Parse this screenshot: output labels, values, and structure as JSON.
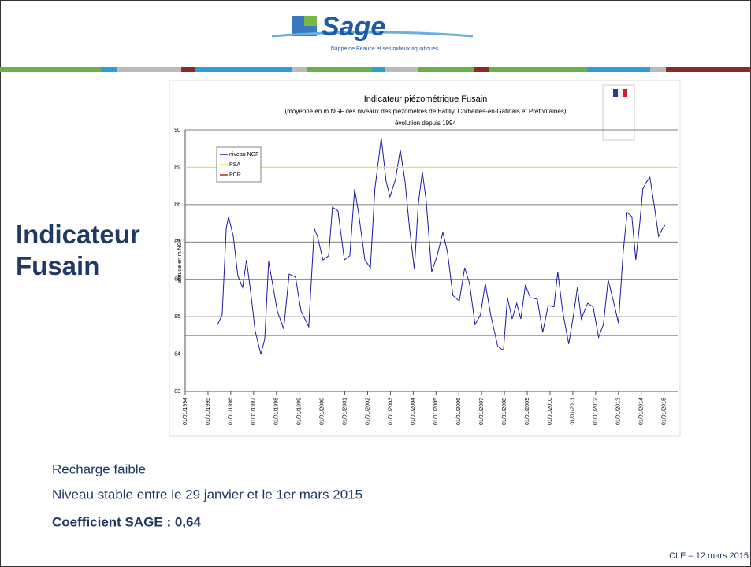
{
  "header": {
    "logo": "Sage",
    "tagline": "Nappe de Beauce et ses milieux aquatiques"
  },
  "slide_title": "Indicateur Fusain",
  "notes": [
    "Recharge faible",
    "Niveau stable entre le 29 janvier et le 1er mars 2015"
  ],
  "coefficient": "Coefficient SAGE : 0,64",
  "footer": "CLE – 12 mars 2015",
  "chart_data": {
    "type": "line",
    "title": "Indicateur piézométrique Fusain",
    "subtitle": "(moyenne en m NGF des niveaux des piézomètres de Batilly, Corbeilles-en-Gâtinais et Préfontaines)",
    "subtitle2": "évolution depuis 1994",
    "ylabel": "altitude en m NGF",
    "xlim": [
      1994,
      2015.6
    ],
    "ylim": [
      83,
      90
    ],
    "yticks": [
      83,
      84,
      85,
      86,
      87,
      88,
      89,
      90
    ],
    "xticks": [
      {
        "value": 1994,
        "label": "01/01/1994"
      },
      {
        "value": 1995,
        "label": "01/01/1995"
      },
      {
        "value": 1996,
        "label": "01/01/1996"
      },
      {
        "value": 1997,
        "label": "01/01/1997"
      },
      {
        "value": 1998,
        "label": "01/01/1998"
      },
      {
        "value": 1999,
        "label": "01/01/1999"
      },
      {
        "value": 2000,
        "label": "01/01/2000"
      },
      {
        "value": 2001,
        "label": "01/01/2001"
      },
      {
        "value": 2002,
        "label": "01/01/2002"
      },
      {
        "value": 2003,
        "label": "01/01/2003"
      },
      {
        "value": 2004,
        "label": "01/01/2004"
      },
      {
        "value": 2005,
        "label": "01/01/2005"
      },
      {
        "value": 2006,
        "label": "01/01/2006"
      },
      {
        "value": 2007,
        "label": "01/01/2007"
      },
      {
        "value": 2008,
        "label": "01/01/2008"
      },
      {
        "value": 2009,
        "label": "01/01/2009"
      },
      {
        "value": 2010,
        "label": "01/01/2010"
      },
      {
        "value": 2011,
        "label": "01/01/2011"
      },
      {
        "value": 2012,
        "label": "01/01/2012"
      },
      {
        "value": 2013,
        "label": "01/01/2013"
      },
      {
        "value": 2014,
        "label": "01/01/2014"
      },
      {
        "value": 2015,
        "label": "01/01/2015"
      }
    ],
    "grid": true,
    "legend": "upper-left",
    "series": [
      {
        "name": "niveau NGF",
        "color": "#1a1aa8",
        "x": [
          1995.42,
          1995.62,
          1995.8,
          1995.9,
          1996.11,
          1996.31,
          1996.52,
          1996.69,
          1996.87,
          1997.07,
          1997.32,
          1997.49,
          1997.66,
          1997.83,
          1998.04,
          1998.32,
          1998.56,
          1998.84,
          1999.08,
          1999.42,
          1999.66,
          1999.8,
          2000.04,
          2000.29,
          2000.46,
          2000.7,
          2000.98,
          2001.22,
          2001.43,
          2001.6,
          2001.88,
          2002.12,
          2002.32,
          2002.6,
          2002.81,
          2002.98,
          2003.22,
          2003.43,
          2003.64,
          2003.84,
          2004.05,
          2004.22,
          2004.4,
          2004.57,
          2004.81,
          2005.05,
          2005.3,
          2005.5,
          2005.74,
          2006.02,
          2006.26,
          2006.47,
          2006.71,
          2006.95,
          2007.16,
          2007.4,
          2007.71,
          2007.96,
          2008.13,
          2008.34,
          2008.54,
          2008.72,
          2008.92,
          2009.13,
          2009.44,
          2009.68,
          2009.92,
          2010.17,
          2010.34,
          2010.55,
          2010.82,
          2011.03,
          2011.2,
          2011.37,
          2011.65,
          2011.89,
          2012.13,
          2012.34,
          2012.55,
          2012.76,
          2013.0,
          2013.21,
          2013.38,
          2013.59,
          2013.76,
          2013.93,
          2014.07,
          2014.21,
          2014.38,
          2014.59,
          2014.76,
          2014.9,
          2015.04
        ],
        "values": [
          84.79,
          85.05,
          87.36,
          87.68,
          87.15,
          86.1,
          85.78,
          86.52,
          85.68,
          84.62,
          83.99,
          84.41,
          86.48,
          85.89,
          85.15,
          84.67,
          86.14,
          86.06,
          85.15,
          84.73,
          87.36,
          87.15,
          86.52,
          86.63,
          87.93,
          87.83,
          86.52,
          86.63,
          88.42,
          87.79,
          86.52,
          86.31,
          88.42,
          89.79,
          88.63,
          88.21,
          88.67,
          89.47,
          88.63,
          87.36,
          86.27,
          88.0,
          88.88,
          88.1,
          86.2,
          86.63,
          87.26,
          86.73,
          85.57,
          85.42,
          86.31,
          85.89,
          84.79,
          85.05,
          85.89,
          85.05,
          84.2,
          84.1,
          85.51,
          84.94,
          85.36,
          84.94,
          85.85,
          85.51,
          85.47,
          84.58,
          85.3,
          85.26,
          86.2,
          85.15,
          84.27,
          85.05,
          85.78,
          84.94,
          85.36,
          85.26,
          84.45,
          84.79,
          85.99,
          85.47,
          84.83,
          86.73,
          87.79,
          87.68,
          86.52,
          87.47,
          88.42,
          88.59,
          88.73,
          87.89,
          87.15,
          87.32,
          87.45
        ]
      },
      {
        "name": "PSA",
        "color": "#e8e84a",
        "x": [
          1994,
          2015.6
        ],
        "values": [
          89,
          89
        ]
      },
      {
        "name": "PCR",
        "color": "#c0202a",
        "x": [
          1994,
          2015.6
        ],
        "values": [
          84.5,
          84.5
        ]
      }
    ]
  }
}
